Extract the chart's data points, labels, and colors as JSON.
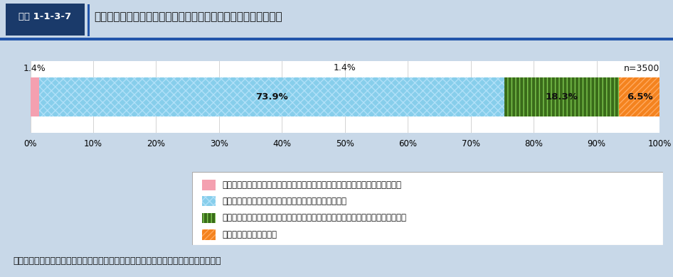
{
  "header_label": "図表 1-1-3-7",
  "header_title": "持病を有している者の新型コロナ感染拡大前後の通院頻度の変化",
  "n_label": "n=3500",
  "values": [
    1.4,
    73.9,
    18.3,
    6.5
  ],
  "labels_pct": [
    "1.4%",
    "73.9%",
    "18.3%",
    "6.5%"
  ],
  "legend_labels": [
    "感染拡大前と比べて、通院する頻度を多くしていた（通院間隔を短くしていた）",
    "感染拡大以前と比べて、通院する頻度は変わらなかった",
    "感染拡大前と比べて、通院する頻度を少なくしていた（通院間隔を長くしていた）",
    "通院するのをやめていた"
  ],
  "bar_colors": [
    "#F4A0B0",
    "#87CEEB",
    "#3A6B1A",
    "#F4831F"
  ],
  "hatch_patterns": [
    "",
    "xxx",
    "|||",
    "////"
  ],
  "hatch_colors": [
    "",
    "#B0E0F8",
    "#7EC850",
    "#FFAA60"
  ],
  "bg_color": "#C8D8E8",
  "header_bg": "#FFFFFF",
  "header_label_bg": "#1A3A6A",
  "header_label_color": "#FFFFFF",
  "header_border_color": "#2255AA",
  "bar_area_bg": "#FFFFFF",
  "legend_border": "#AAAAAA",
  "source_text": "資料：健康保険組合連合会「新型コロナウイルス感染症拡大期における受診意識調査」",
  "x_ticks": [
    0,
    10,
    20,
    30,
    40,
    50,
    60,
    70,
    80,
    90,
    100
  ],
  "x_tick_labels": [
    "0%",
    "10%",
    "20%",
    "30%",
    "40%",
    "50%",
    "60%",
    "70%",
    "80%",
    "90%",
    "100%"
  ],
  "grid_color": "#CCCCCC"
}
